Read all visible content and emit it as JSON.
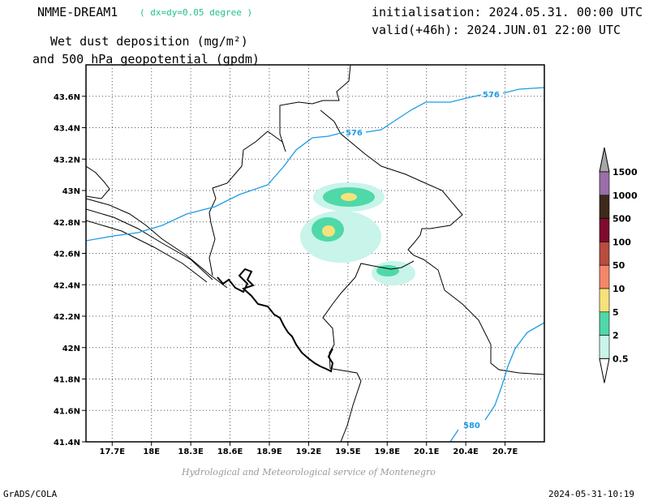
{
  "header": {
    "model": "NMME-DREAM1",
    "resolution": "( dx=dy=0.05 degree )",
    "initialisation": "initialisation: 2024.05.31. 00:00 UTC",
    "valid": "valid(+46h): 2024.JUN.01 22:00 UTC",
    "variable_line1": "Wet dust deposition (mg/m²)",
    "variable_line2": "and 500 hPa geopotential (gpdm)"
  },
  "map": {
    "lon_labels": [
      "17.7E",
      "18E",
      "18.3E",
      "18.6E",
      "18.9E",
      "19.2E",
      "19.5E",
      "19.8E",
      "20.1E",
      "20.4E",
      "20.7E"
    ],
    "lat_labels": [
      "43.6N",
      "43.4N",
      "43.2N",
      "43N",
      "42.8N",
      "42.6N",
      "42.4N",
      "42.2N",
      "42N",
      "41.8N",
      "41.6N",
      "41.4N"
    ],
    "lon_range": [
      17.5,
      21.0
    ],
    "lat_range": [
      41.4,
      43.8
    ],
    "contour_labels": [
      "576",
      "576",
      "580"
    ],
    "contour_color": "#1e9be6",
    "grid": true
  },
  "colorbar": {
    "levels": [
      "1500",
      "1000",
      "500",
      "100",
      "50",
      "10",
      "5",
      "2",
      "0.5"
    ],
    "colors": [
      "#a6a6a6",
      "#9a6ea8",
      "#3e2a1a",
      "#7f0b2e",
      "#b84c3f",
      "#f2876a",
      "#f6e27a",
      "#4fd8a8",
      "#c8f4ea",
      "#ffffff"
    ]
  },
  "footer": {
    "credit": "Hydrological and Meteorological service of Montenegro",
    "left": "GrADS/COLA",
    "right": "2024-05-31-10:19"
  }
}
